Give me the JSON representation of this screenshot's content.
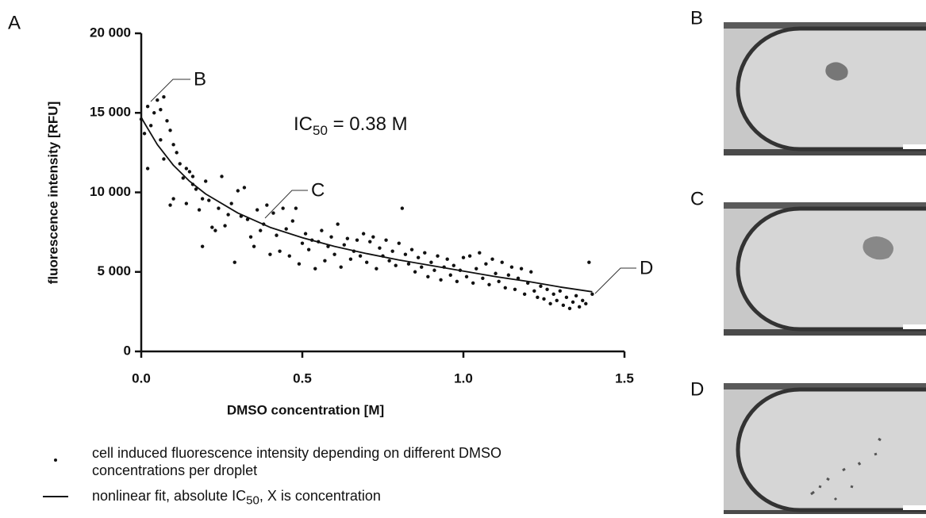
{
  "chart_data": {
    "type": "scatter",
    "panel_label": "A",
    "xlabel": "DMSO concentration [M]",
    "ylabel": "fluorescence intensity [RFU]",
    "xlim": [
      0,
      1.5
    ],
    "ylim": [
      0,
      20000
    ],
    "xticks": [
      {
        "value": 0,
        "label": "0.0"
      },
      0.5,
      {
        "value": 1,
        "label": "1.0"
      },
      1.5
    ],
    "yticks": [
      0,
      {
        "value": 5000,
        "label": "5 000"
      },
      {
        "value": 10000,
        "label": "10 000"
      },
      {
        "value": 15000,
        "label": "15 000"
      },
      {
        "value": 20000,
        "label": "20 000"
      }
    ],
    "annotation": {
      "main": "IC",
      "sub": "50",
      "rest": " = 0.38 M"
    },
    "callouts": [
      "B",
      "C",
      "D"
    ],
    "series": [
      {
        "name": "cell induced fluorescence intensity depending on different DMSO concentrations per droplet",
        "color": "#111111",
        "mode": "markers",
        "x": [
          0.0,
          0.01,
          0.02,
          0.02,
          0.03,
          0.04,
          0.05,
          0.06,
          0.06,
          0.07,
          0.07,
          0.08,
          0.09,
          0.09,
          0.1,
          0.1,
          0.11,
          0.12,
          0.13,
          0.14,
          0.14,
          0.15,
          0.16,
          0.16,
          0.17,
          0.18,
          0.19,
          0.19,
          0.2,
          0.21,
          0.22,
          0.23,
          0.24,
          0.25,
          0.26,
          0.27,
          0.28,
          0.29,
          0.3,
          0.31,
          0.32,
          0.33,
          0.34,
          0.35,
          0.36,
          0.37,
          0.38,
          0.39,
          0.4,
          0.41,
          0.42,
          0.43,
          0.44,
          0.45,
          0.46,
          0.47,
          0.48,
          0.49,
          0.5,
          0.51,
          0.52,
          0.53,
          0.54,
          0.55,
          0.56,
          0.57,
          0.58,
          0.59,
          0.6,
          0.61,
          0.62,
          0.63,
          0.64,
          0.65,
          0.66,
          0.67,
          0.68,
          0.69,
          0.7,
          0.71,
          0.72,
          0.73,
          0.74,
          0.75,
          0.76,
          0.77,
          0.78,
          0.79,
          0.8,
          0.81,
          0.82,
          0.83,
          0.84,
          0.85,
          0.86,
          0.87,
          0.88,
          0.89,
          0.9,
          0.91,
          0.92,
          0.93,
          0.94,
          0.95,
          0.96,
          0.97,
          0.98,
          0.99,
          1.0,
          1.01,
          1.02,
          1.03,
          1.04,
          1.05,
          1.06,
          1.07,
          1.08,
          1.09,
          1.1,
          1.11,
          1.12,
          1.13,
          1.14,
          1.15,
          1.16,
          1.17,
          1.18,
          1.19,
          1.2,
          1.21,
          1.22,
          1.23,
          1.24,
          1.25,
          1.26,
          1.27,
          1.28,
          1.29,
          1.3,
          1.31,
          1.32,
          1.33,
          1.34,
          1.35,
          1.36,
          1.37,
          1.38,
          1.39,
          1.4
        ],
        "values": [
          14600,
          13700,
          11500,
          15400,
          14200,
          15000,
          15800,
          15200,
          13300,
          12100,
          16000,
          14500,
          13900,
          9200,
          13000,
          9600,
          12500,
          11800,
          10900,
          11500,
          9300,
          11300,
          10500,
          11000,
          10200,
          8900,
          6600,
          9600,
          10700,
          9500,
          7800,
          7600,
          9000,
          11000,
          7900,
          8600,
          9300,
          5600,
          10100,
          8500,
          10300,
          8300,
          7200,
          6600,
          8900,
          7600,
          8000,
          9200,
          6100,
          8700,
          7300,
          6300,
          9000,
          7700,
          6000,
          8200,
          9000,
          5500,
          6800,
          7400,
          6400,
          7000,
          5200,
          6900,
          7600,
          5700,
          6600,
          7200,
          6100,
          8000,
          5300,
          6700,
          7100,
          5800,
          6300,
          7000,
          6000,
          7400,
          5600,
          6900,
          7200,
          5200,
          6500,
          6000,
          7000,
          5700,
          6300,
          5400,
          6800,
          9000,
          6100,
          5500,
          6400,
          5000,
          5900,
          5300,
          6200,
          4700,
          5600,
          5100,
          6000,
          4500,
          5300,
          5800,
          4800,
          5400,
          4400,
          5100,
          5900,
          4700,
          6000,
          4300,
          5200,
          6200,
          4600,
          5500,
          4200,
          5800,
          4900,
          4400,
          5600,
          4000,
          4800,
          5300,
          3900,
          4600,
          5200,
          3600,
          4300,
          5000,
          3800,
          3400,
          4100,
          3300,
          3900,
          3000,
          3600,
          3200,
          3800,
          2900,
          3400,
          2700,
          3100,
          3500,
          2800,
          3200,
          3000,
          5600,
          3600
        ]
      },
      {
        "name": {
          "main": "nonlinear fit, absolute IC",
          "sub": "50",
          "rest": ", X is concentration"
        },
        "color": "#111111",
        "mode": "line",
        "x": [
          0,
          0.05,
          0.1,
          0.15,
          0.2,
          0.3,
          0.4,
          0.5,
          0.6,
          0.7,
          0.8,
          0.9,
          1.0,
          1.1,
          1.2,
          1.3,
          1.4
        ],
        "values": [
          14700,
          13000,
          11700,
          10700,
          9900,
          8700,
          7800,
          7150,
          6600,
          6150,
          5750,
          5400,
          5050,
          4700,
          4400,
          4050,
          3750
        ]
      }
    ]
  },
  "images": [
    {
      "label": "B"
    },
    {
      "label": "C"
    },
    {
      "label": "D"
    }
  ]
}
